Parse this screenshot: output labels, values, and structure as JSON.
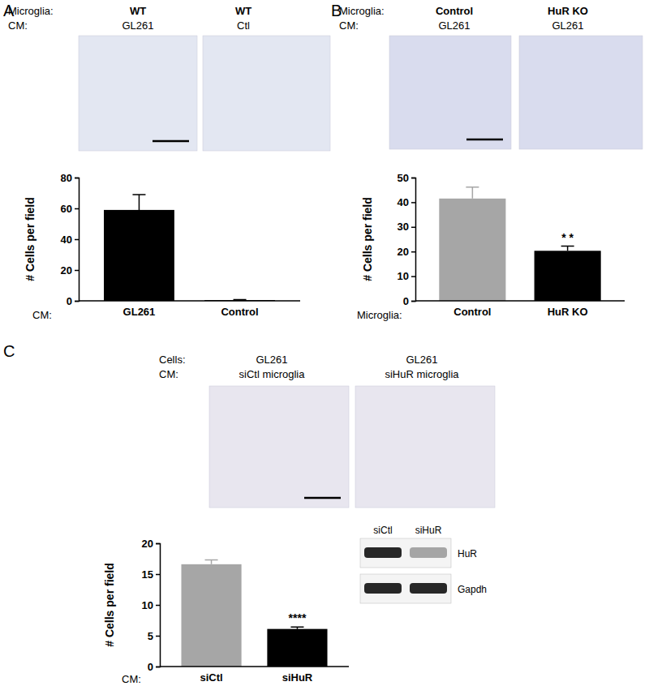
{
  "chart_data": [
    {
      "type": "bar",
      "title": "A",
      "header": [
        {
          "label": "Microglia:",
          "items": [
            "WT",
            "WT"
          ]
        },
        {
          "label": "CM:",
          "items": [
            "GL261",
            "Ctl"
          ]
        }
      ],
      "x_label": "CM:",
      "y_label": "# Cells per field",
      "categories": [
        "GL261",
        "Control"
      ],
      "values": [
        59,
        0.5
      ],
      "errors": [
        10,
        0.3
      ],
      "colors": [
        "#000000",
        "#000000"
      ],
      "ylim": [
        0,
        80
      ],
      "yticks": [
        0,
        20,
        40,
        60,
        80
      ]
    },
    {
      "type": "bar",
      "title": "B",
      "header": [
        {
          "label": "Microglia:",
          "items": [
            "Control",
            "HuR KO"
          ]
        },
        {
          "label": "CM:",
          "items": [
            "GL261",
            "GL261"
          ]
        }
      ],
      "x_label": "Microglia:",
      "y_label": "# Cells per field",
      "categories": [
        "Control",
        "HuR KO"
      ],
      "values": [
        41.5,
        20.3
      ],
      "errors": [
        4.6,
        1.9
      ],
      "colors": [
        "#a6a6a6",
        "#000000"
      ],
      "annotations": [
        {
          "x": "HuR KO",
          "text": "* *"
        }
      ],
      "ylim": [
        0,
        50
      ],
      "yticks": [
        0,
        10,
        20,
        30,
        40,
        50
      ]
    },
    {
      "type": "bar",
      "title": "C",
      "header": [
        {
          "label": "Cells:",
          "items": [
            "GL261",
            "GL261"
          ]
        },
        {
          "label": "CM:",
          "items": [
            "siCtl microglia",
            "siHuR microglia"
          ]
        }
      ],
      "x_label": "CM:",
      "y_label": "# Cells per field",
      "categories": [
        "siCtl",
        "siHuR"
      ],
      "values": [
        16.6,
        6.1
      ],
      "errors": [
        0.7,
        0.3
      ],
      "colors": [
        "#a6a6a6",
        "#000000"
      ],
      "annotations": [
        {
          "x": "siHuR",
          "text": "****"
        }
      ],
      "inset": {
        "columns": [
          "siCtl",
          "siHuR"
        ],
        "rows": [
          "HuR",
          "Gapdh"
        ]
      },
      "ylim": [
        0,
        20
      ],
      "yticks": [
        0,
        5,
        10,
        15,
        20
      ]
    }
  ]
}
